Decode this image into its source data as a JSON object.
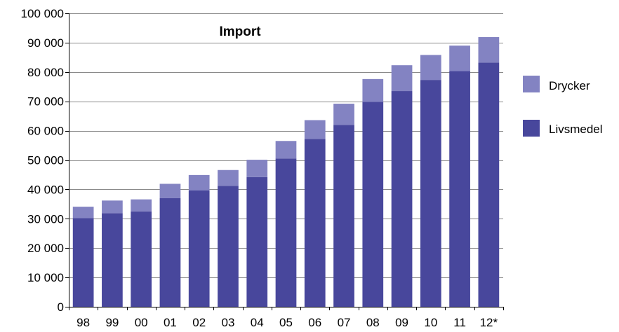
{
  "chart_data": {
    "type": "bar",
    "stacked": true,
    "title": "Import",
    "xlabel": "",
    "ylabel": "",
    "categories": [
      "98",
      "99",
      "00",
      "01",
      "02",
      "03",
      "04",
      "05",
      "06",
      "07",
      "08",
      "09",
      "10",
      "11",
      "12*"
    ],
    "series": [
      {
        "name": "Livsmedel",
        "color": "#48479c",
        "values": [
          30200,
          31900,
          32500,
          37000,
          39700,
          41200,
          44200,
          50500,
          57200,
          62000,
          69800,
          73500,
          77300,
          80300,
          83200
        ]
      },
      {
        "name": "Drycker",
        "color": "#8383c2",
        "values": [
          3900,
          4300,
          4100,
          4900,
          5200,
          5400,
          5900,
          6000,
          6400,
          7200,
          7800,
          8800,
          8500,
          8700,
          8700
        ]
      }
    ],
    "ylim": [
      0,
      100000
    ],
    "yticks": [
      0,
      10000,
      20000,
      30000,
      40000,
      50000,
      60000,
      70000,
      80000,
      90000,
      100000
    ],
    "ytick_labels": [
      "0",
      "10 000",
      "20 000",
      "30 000",
      "40 000",
      "50 000",
      "60 000",
      "70 000",
      "80 000",
      "90 000",
      "100 000"
    ],
    "grid": true,
    "legend": {
      "position": "right",
      "entries": [
        "Drycker",
        "Livsmedel"
      ]
    }
  }
}
